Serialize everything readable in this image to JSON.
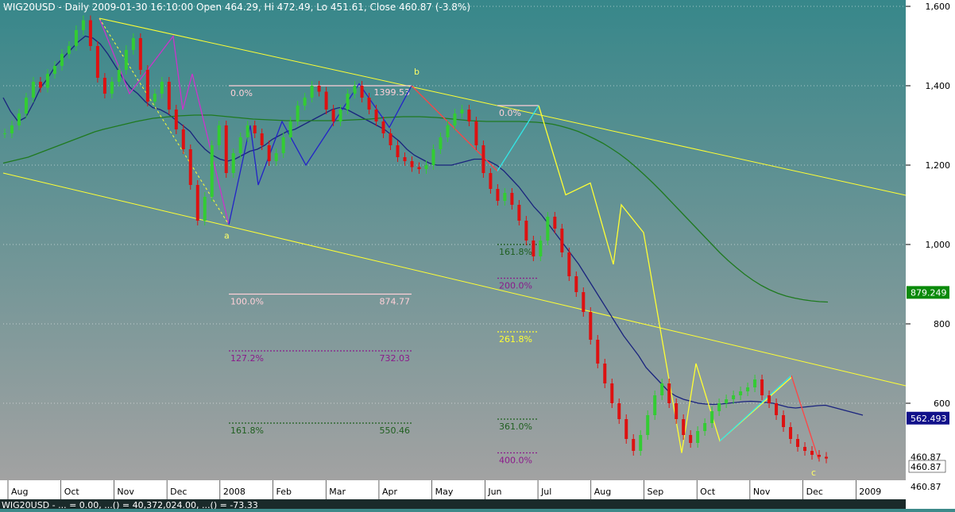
{
  "header": {
    "title": "WIG20USD - Daily 2009-01-30 16:10:00 Open 464.29, Hi 472.49, Lo 451.61, Close 460.87 (-3.8%)",
    "status_line": "WIG20USD - ... = 0.00, ...() = 40,372,024.00, ...() = -73.33"
  },
  "colors": {
    "background_top": "#3a8b8b",
    "background_bottom": "#a0a0a0",
    "channel": "#ffff33",
    "ma_blue": "#1a237e",
    "ma_green": "#1f7a1f",
    "candle_up": "#33cc33",
    "candle_down": "#dd1111",
    "zigzag_blue": "#2323c8",
    "zigzag_magenta": "#cc33cc",
    "zigzag_yellow": "#ffff33",
    "zigzag_red": "#ff4444",
    "zigzag_cyan": "#33e6e6",
    "fib_white": "#ffd0d8",
    "fib_purple": "#8b1a8b",
    "fib_green": "#1f5f1f",
    "fib_yellow": "#ffff33",
    "label_green_bg": "#0a8a0a",
    "label_navy_bg": "#10108a"
  },
  "chart_data": {
    "type": "candlestick",
    "ylim": [
      400,
      1600
    ],
    "y_ticks": [
      {
        "value": 1600,
        "label": "1,600"
      },
      {
        "value": 1400,
        "label": "1,400"
      },
      {
        "value": 1200,
        "label": "1,200"
      },
      {
        "value": 1000,
        "label": "1,000"
      },
      {
        "value": 800,
        "label": "800"
      },
      {
        "value": 600,
        "label": "600"
      }
    ],
    "x_labels": [
      "Aug",
      "Oct",
      "Nov",
      "Dec",
      "2008",
      "Feb",
      "Mar",
      "Apr",
      "May",
      "Jun",
      "Jul",
      "Aug",
      "Sep",
      "Oct",
      "Nov",
      "Dec",
      "2009"
    ],
    "series": [
      {
        "name": "WIG20USD",
        "close": [
          1280,
          1300,
          1330,
          1370,
          1410,
          1395,
          1430,
          1450,
          1480,
          1500,
          1540,
          1565,
          1500,
          1420,
          1380,
          1410,
          1440,
          1490,
          1520,
          1440,
          1360,
          1380,
          1410,
          1340,
          1290,
          1240,
          1150,
          1060,
          1120,
          1250,
          1300,
          1180,
          1230,
          1270,
          1300,
          1280,
          1250,
          1210,
          1230,
          1270,
          1310,
          1350,
          1370,
          1400,
          1385,
          1340,
          1310,
          1340,
          1380,
          1400,
          1370,
          1340,
          1310,
          1280,
          1250,
          1220,
          1210,
          1195,
          1190,
          1200,
          1240,
          1270,
          1300,
          1330,
          1340,
          1310,
          1250,
          1180,
          1140,
          1110,
          1130,
          1100,
          1060,
          1010,
          970,
          1010,
          1070,
          1040,
          980,
          920,
          880,
          830,
          760,
          700,
          650,
          600,
          560,
          510,
          480,
          520,
          570,
          620,
          650,
          600,
          560,
          520,
          500,
          530,
          550,
          580,
          600,
          610,
          620,
          630,
          640,
          660,
          620,
          600,
          570,
          540,
          510,
          490,
          480,
          470,
          465,
          460.87
        ]
      }
    ],
    "overlays": [
      {
        "name": "blue",
        "values": [
          1370,
          1335,
          1310,
          1320,
          1355,
          1395,
          1420,
          1450,
          1470,
          1490,
          1510,
          1525,
          1520,
          1505,
          1480,
          1450,
          1420,
          1395,
          1380,
          1360,
          1345,
          1340,
          1330,
          1315,
          1300,
          1285,
          1260,
          1240,
          1225,
          1215,
          1210,
          1215,
          1225,
          1235,
          1240,
          1250,
          1265,
          1275,
          1285,
          1290,
          1300,
          1310,
          1320,
          1330,
          1340,
          1345,
          1340,
          1330,
          1320,
          1310,
          1300,
          1290,
          1275,
          1260,
          1240,
          1225,
          1215,
          1205,
          1200,
          1200,
          1200,
          1205,
          1210,
          1215,
          1215,
          1210,
          1200,
          1185,
          1165,
          1145,
          1120,
          1095,
          1075,
          1050,
          1025,
          1000,
          975,
          950,
          920,
          890,
          860,
          830,
          800,
          770,
          745,
          720,
          690,
          670,
          650,
          630,
          618,
          610,
          605,
          600,
          598,
          597,
          598,
          600,
          602,
          604,
          605,
          604,
          602,
          600,
          595,
          590,
          588,
          590,
          592,
          594,
          595,
          590,
          585,
          580,
          575,
          570
        ]
      },
      {
        "name": "green",
        "values": [
          1205,
          1210,
          1215,
          1220,
          1228,
          1236,
          1244,
          1252,
          1260,
          1268,
          1276,
          1284,
          1290,
          1295,
          1300,
          1305,
          1310,
          1314,
          1318,
          1320,
          1322,
          1324,
          1325,
          1326,
          1326,
          1326,
          1324,
          1322,
          1320,
          1318,
          1316,
          1315,
          1314,
          1313,
          1312,
          1312,
          1312,
          1312,
          1312,
          1312,
          1312,
          1313,
          1314,
          1315,
          1316,
          1318,
          1320,
          1321,
          1322,
          1322,
          1322,
          1321,
          1320,
          1318,
          1316,
          1314,
          1312,
          1311,
          1310,
          1310,
          1310,
          1310,
          1310,
          1309,
          1308,
          1306,
          1303,
          1298,
          1292,
          1285,
          1276,
          1266,
          1255,
          1242,
          1228,
          1212,
          1194,
          1175,
          1155,
          1134,
          1112,
          1090,
          1068,
          1046,
          1024,
          1002,
          980,
          960,
          942,
          925,
          910,
          897,
          886,
          877,
          870,
          865,
          861,
          858,
          856,
          855
        ]
      }
    ],
    "channel_label": "879.249",
    "current_price_label": "460.87",
    "ma_label": "562.493",
    "extra_price_label": "460.87",
    "bottom_right_label": "460.87",
    "fib_labels": [
      {
        "text": "0.0%",
        "value": "",
        "color": "fib_white"
      },
      {
        "text": "1399.53",
        "value": "",
        "color": "fib_white"
      },
      {
        "text": "100.0%",
        "value": "874.77",
        "color": "fib_white"
      },
      {
        "text": "127.2%",
        "value": "732.03",
        "color": "fib_purple"
      },
      {
        "text": "161.8%",
        "value": "550.46",
        "color": "fib_green"
      },
      {
        "text": "0.0%",
        "value": "",
        "color": "fib_white"
      },
      {
        "text": "161.8%",
        "value": "",
        "color": "fib_green"
      },
      {
        "text": "200.0%",
        "value": "",
        "color": "fib_purple"
      },
      {
        "text": "261.8%",
        "value": "",
        "color": "fib_yellow"
      },
      {
        "text": "361.0%",
        "value": "",
        "color": "fib_green"
      },
      {
        "text": "400.0%",
        "value": "",
        "color": "fib_purple"
      }
    ],
    "wave_labels": [
      "a",
      "b",
      "c"
    ]
  }
}
